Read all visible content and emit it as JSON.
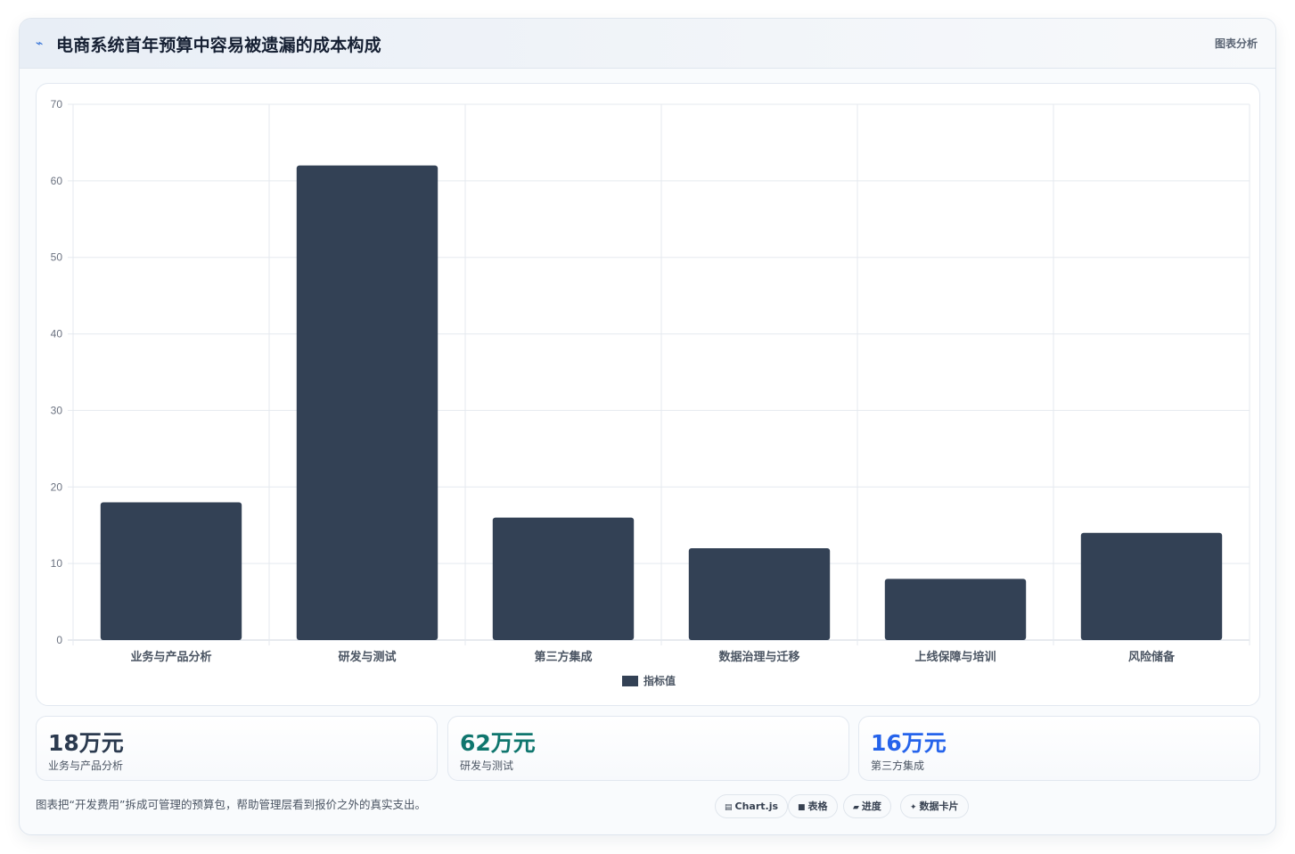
{
  "header": {
    "icon": "chart-line-icon",
    "title": "电商系统首年预算中容易被遗漏的成本构成",
    "tag": "图表分析"
  },
  "chart_data": {
    "type": "bar",
    "categories": [
      "业务与产品分析",
      "研发与测试",
      "第三方集成",
      "数据治理与迁移",
      "上线保障与培训",
      "风险储备"
    ],
    "series": [
      {
        "name": "指标值",
        "values": [
          18,
          62,
          16,
          12,
          8,
          14
        ]
      }
    ],
    "ylim": [
      0,
      70
    ],
    "yticks": [
      0,
      10,
      20,
      30,
      40,
      50,
      60,
      70
    ],
    "grid": true,
    "legend": "bottom",
    "bar_color": "#334155"
  },
  "kpis": [
    {
      "value": "18万元",
      "label": "业务与产品分析",
      "color": "#2b3a4f"
    },
    {
      "value": "62万元",
      "label": "研发与测试",
      "color": "#0f766e"
    },
    {
      "value": "16万元",
      "label": "第三方集成",
      "color": "#2563eb"
    }
  ],
  "footer": {
    "note": "图表把“开发费用”拆成可管理的预算包，帮助管理层看到报价之外的真实支出。",
    "chips": [
      {
        "icon": "chart-icon",
        "glyph": "▤",
        "label": "Chart.js"
      },
      {
        "icon": "table-icon",
        "glyph": "■",
        "label": "表格"
      },
      {
        "icon": "progress-icon",
        "glyph": "▰",
        "label": "进度"
      },
      {
        "icon": "sparkle-icon",
        "glyph": "✦",
        "label": "数据卡片"
      }
    ]
  }
}
